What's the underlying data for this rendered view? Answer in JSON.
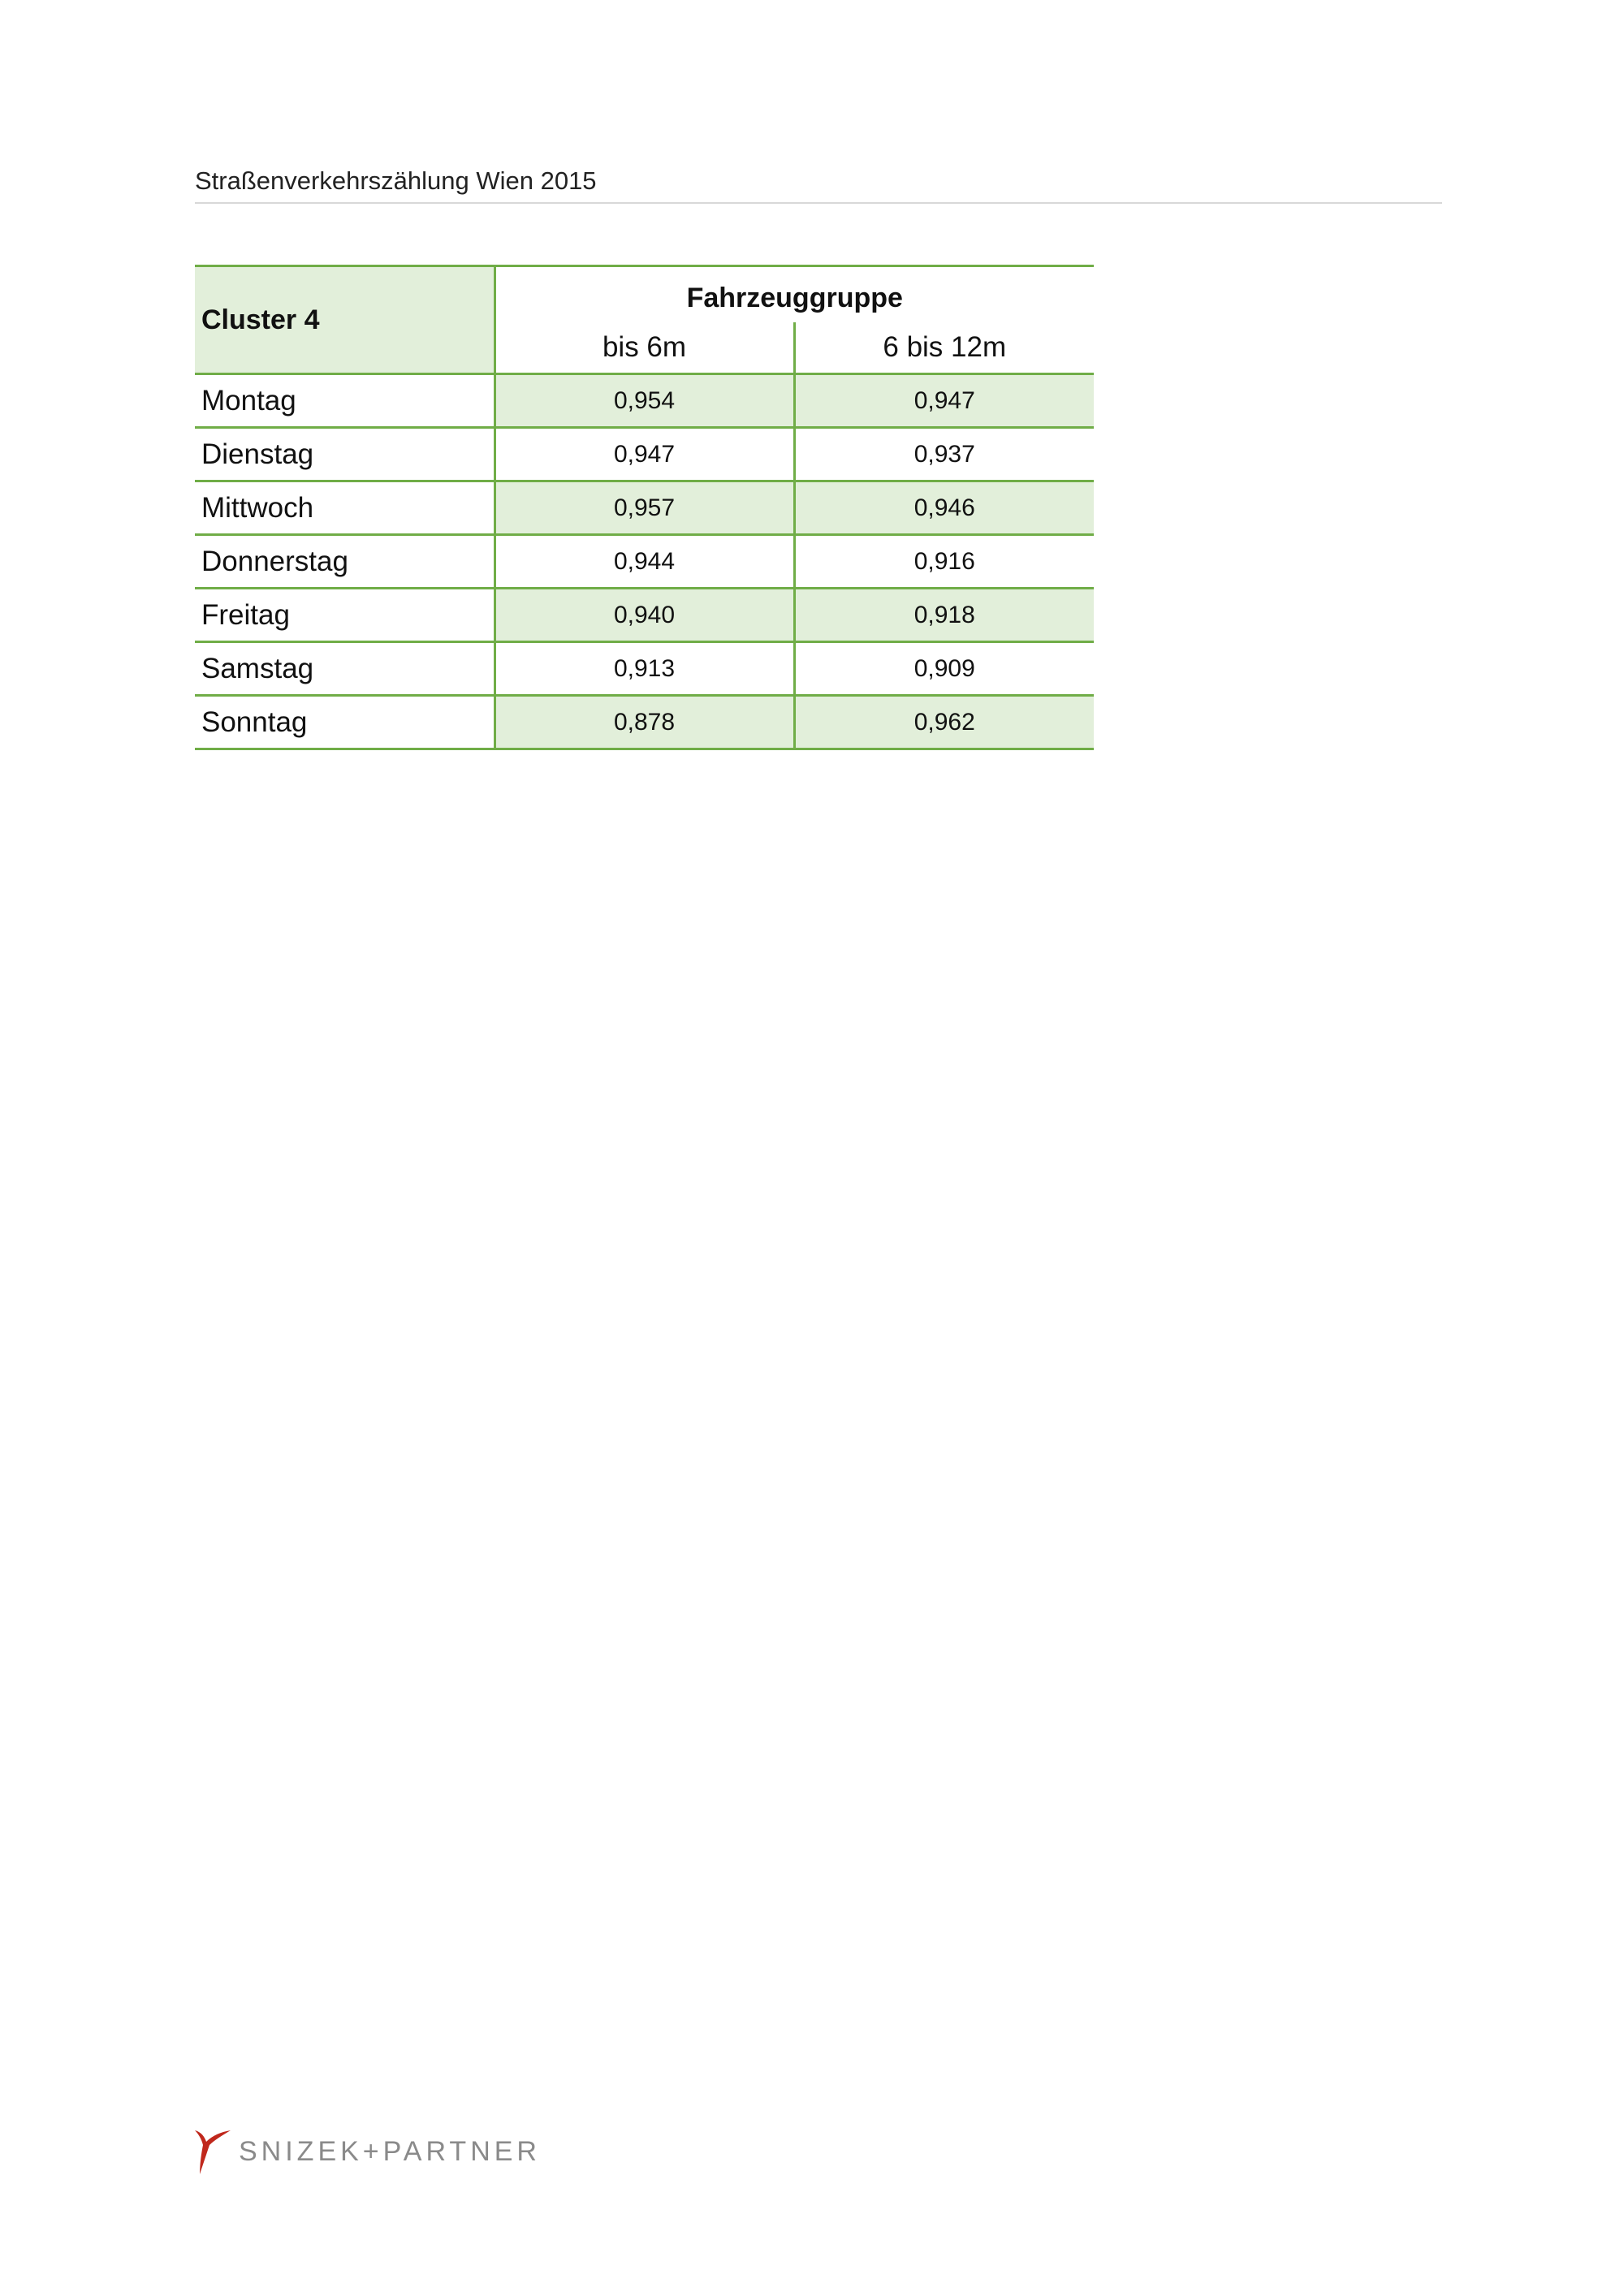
{
  "header": {
    "title": "Straßenverkehrszählung Wien 2015"
  },
  "table": {
    "corner": "Cluster 4",
    "group_header": "Fahrzeuggruppe",
    "columns": [
      "bis 6m",
      "6 bis 12m"
    ],
    "rows": [
      {
        "day": "Montag",
        "values": [
          "0,954",
          "0,947"
        ]
      },
      {
        "day": "Dienstag",
        "values": [
          "0,947",
          "0,937"
        ]
      },
      {
        "day": "Mittwoch",
        "values": [
          "0,957",
          "0,946"
        ]
      },
      {
        "day": "Donnerstag",
        "values": [
          "0,944",
          "0,916"
        ]
      },
      {
        "day": "Freitag",
        "values": [
          "0,940",
          "0,918"
        ]
      },
      {
        "day": "Samstag",
        "values": [
          "0,913",
          "0,909"
        ]
      },
      {
        "day": "Sonntag",
        "values": [
          "0,878",
          "0,962"
        ]
      }
    ]
  },
  "footer": {
    "logo_text": "SNIZEK+PARTNER",
    "logo_color": "#c0281c"
  },
  "colors": {
    "accent": "#70ad47",
    "shade": "#e2efda"
  }
}
